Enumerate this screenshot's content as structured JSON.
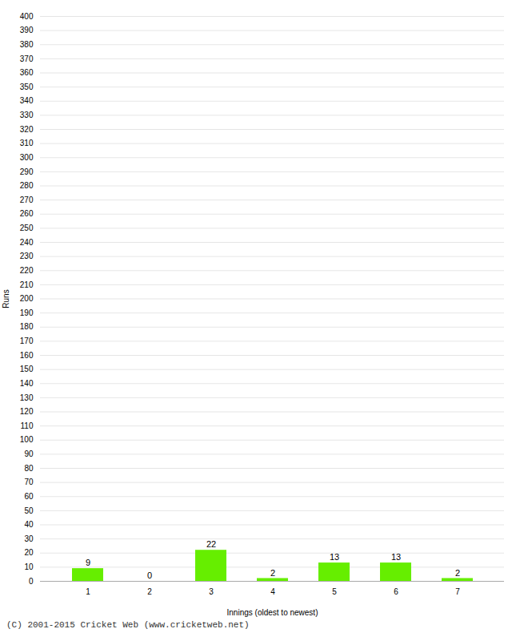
{
  "chart_data": {
    "type": "bar",
    "categories": [
      1,
      2,
      3,
      4,
      5,
      6,
      7
    ],
    "values": [
      9,
      0,
      22,
      2,
      13,
      13,
      2
    ],
    "color": "#66ee00",
    "xlabel": "Innings (oldest to newest)",
    "ylabel": "Runs",
    "ylim": [
      0,
      400
    ],
    "yticks": [
      0,
      10,
      20,
      30,
      40,
      50,
      60,
      70,
      80,
      90,
      100,
      110,
      120,
      130,
      140,
      150,
      160,
      170,
      180,
      190,
      200,
      210,
      220,
      230,
      240,
      250,
      260,
      270,
      280,
      290,
      300,
      310,
      320,
      330,
      340,
      350,
      360,
      370,
      380,
      390,
      400
    ],
    "grid": true,
    "data_labels": true,
    "annotations": [
      "(C) 2001-2015 Cricket Web (www.cricketweb.net)"
    ]
  }
}
